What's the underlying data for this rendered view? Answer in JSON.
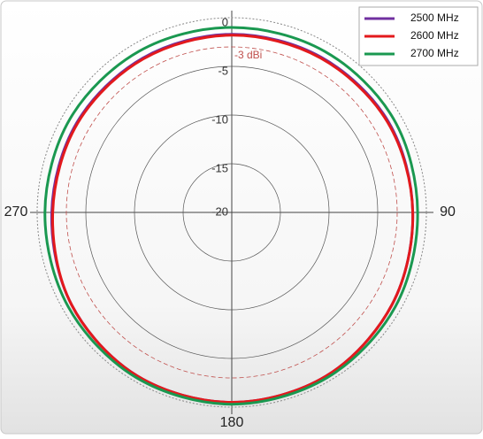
{
  "chart_data": {
    "type": "polar",
    "x": [
      0,
      30,
      60,
      90,
      120,
      150,
      180,
      210,
      240,
      270,
      300,
      330
    ],
    "series": [
      {
        "name": "2500 MHz",
        "color": "#7030a0",
        "values": [
          -1.7,
          -1.6,
          -1.4,
          -1.4,
          -1.0,
          -0.6,
          -0.5,
          -0.6,
          -1.0,
          -1.5,
          -1.6,
          -1.7
        ]
      },
      {
        "name": "2600 MHz",
        "color": "#e3191c",
        "values": [
          -1.8,
          -1.7,
          -1.5,
          -1.4,
          -1.0,
          -0.6,
          -0.5,
          -0.6,
          -1.0,
          -1.6,
          -1.7,
          -1.8
        ]
      },
      {
        "name": "2700 MHz",
        "color": "#1a9850",
        "values": [
          -1.0,
          -0.9,
          -0.8,
          -0.9,
          -0.6,
          -0.4,
          -0.3,
          -0.4,
          -0.6,
          -0.8,
          -0.8,
          -0.9
        ]
      }
    ],
    "rlim": [
      -20,
      0
    ],
    "rticks": [
      -20,
      -15,
      -10,
      -5,
      0
    ],
    "angle_ticks": [
      90,
      180,
      270
    ],
    "reference": {
      "value": -3,
      "label": "-3 dBi"
    },
    "grid": true,
    "legend": "top-right"
  }
}
